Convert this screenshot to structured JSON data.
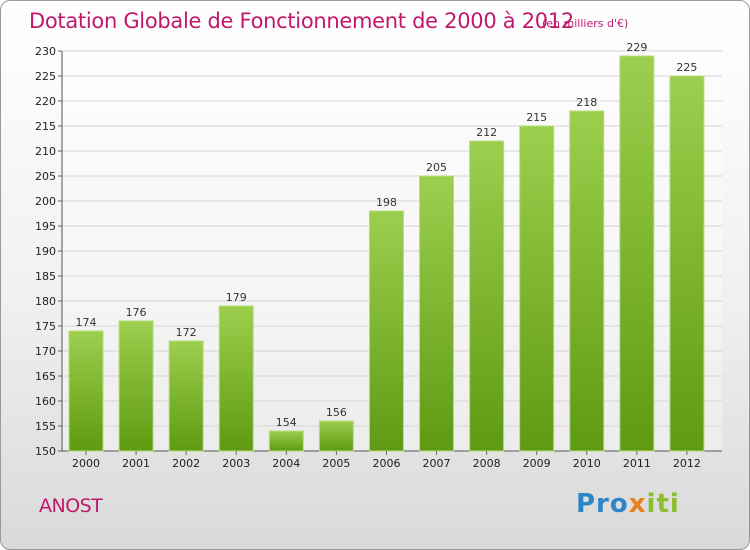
{
  "header": {
    "title": "Dotation Globale de Fonctionnement de 2000 à 2012",
    "unit": "(en milliers d'€)"
  },
  "footer": {
    "place": "ANOST",
    "logo": {
      "part1": "Pro",
      "part2": "x",
      "part3": "iti"
    }
  },
  "colors": {
    "title": "#c0186b",
    "bar_top": "#9ccf4e",
    "bar_bottom": "#5f9a12",
    "grid": "#d4d4d4"
  },
  "chart_data": {
    "type": "bar",
    "title": "Dotation Globale de Fonctionnement de 2000 à 2012",
    "xlabel": "",
    "ylabel": "",
    "categories": [
      "2000",
      "2001",
      "2002",
      "2003",
      "2004",
      "2005",
      "2006",
      "2007",
      "2008",
      "2009",
      "2010",
      "2011",
      "2012"
    ],
    "values": [
      174,
      176,
      172,
      179,
      154,
      156,
      198,
      205,
      212,
      215,
      218,
      229,
      225
    ],
    "ylim": [
      150,
      230
    ],
    "yticks": [
      150,
      155,
      160,
      165,
      170,
      175,
      180,
      185,
      190,
      195,
      200,
      205,
      210,
      215,
      220,
      225,
      230
    ],
    "grid": true
  }
}
